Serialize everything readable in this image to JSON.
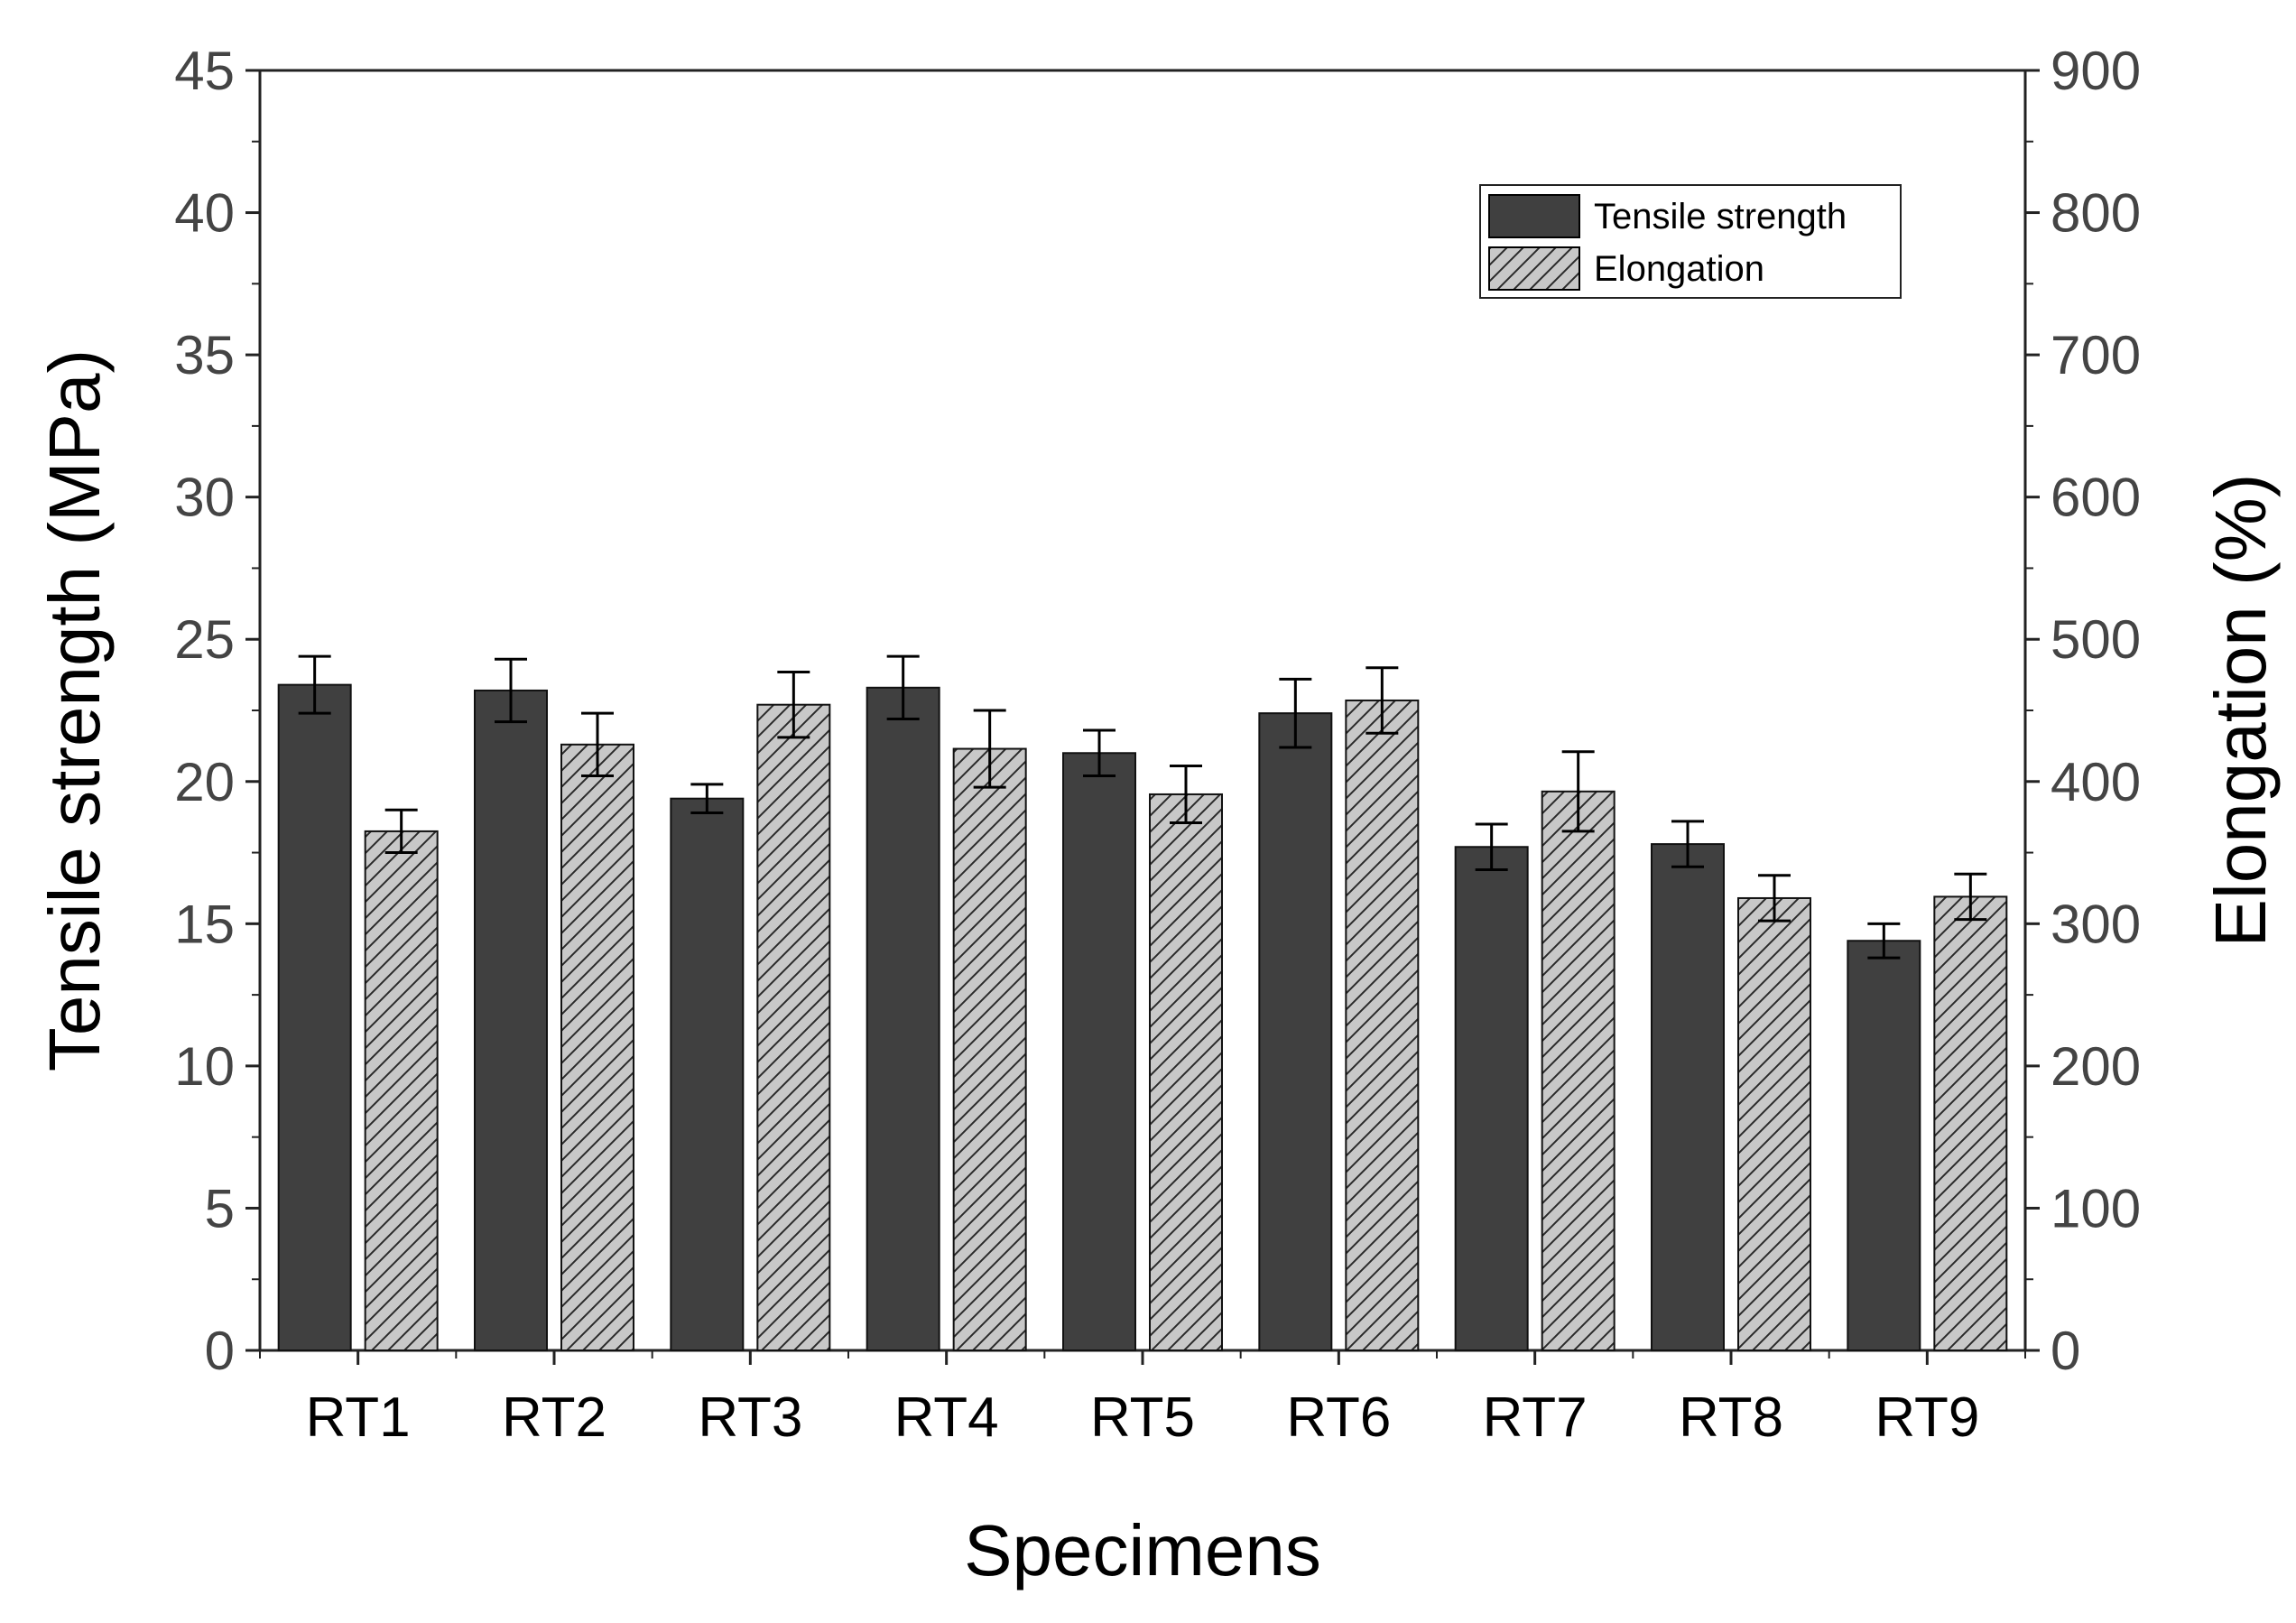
{
  "chart_data": {
    "type": "bar",
    "categories": [
      "RT1",
      "RT2",
      "RT3",
      "RT4",
      "RT5",
      "RT6",
      "RT7",
      "RT8",
      "RT9"
    ],
    "xlabel": "Specimens",
    "ylabel": "Tensile strength (MPa)",
    "y2label": "Elongation (%)",
    "ylim": [
      0,
      45
    ],
    "y2lim": [
      0,
      900
    ],
    "yticks": [
      0,
      5,
      10,
      15,
      20,
      25,
      30,
      35,
      40,
      45
    ],
    "y2ticks": [
      0,
      100,
      200,
      300,
      400,
      500,
      600,
      700,
      800,
      900
    ],
    "grid": false,
    "legend_position": "top-right",
    "series": [
      {
        "name": "Tensile strength",
        "axis": "left",
        "style": "solid",
        "color": "#404040",
        "values": [
          23.4,
          23.2,
          19.4,
          23.3,
          21.0,
          22.4,
          17.7,
          17.8,
          14.4
        ],
        "errors": [
          1.0,
          1.1,
          0.5,
          1.1,
          0.8,
          1.2,
          0.8,
          0.8,
          0.6
        ]
      },
      {
        "name": "Elongation",
        "axis": "right",
        "style": "hatched",
        "color": "#c8c8c8",
        "values": [
          365,
          426,
          454,
          423,
          391,
          457,
          393,
          318,
          319
        ],
        "errors": [
          15,
          22,
          23,
          27,
          20,
          23,
          28,
          16,
          16
        ]
      }
    ]
  }
}
